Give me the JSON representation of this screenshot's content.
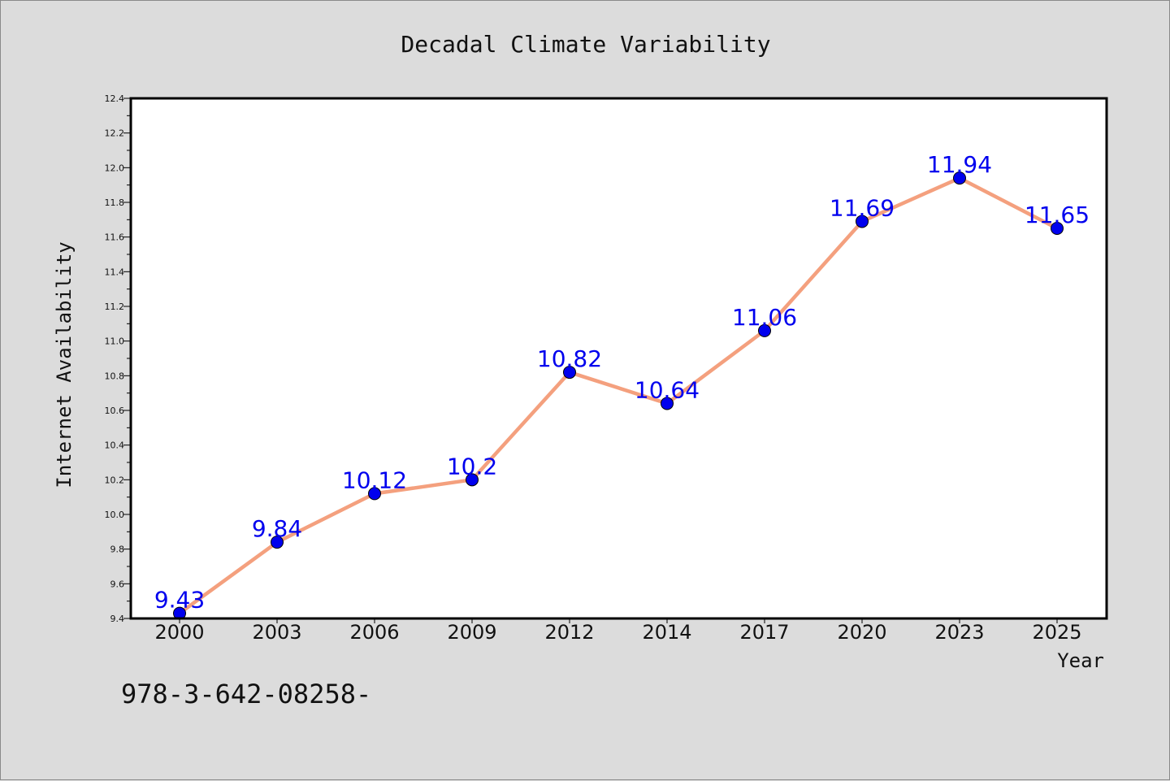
{
  "chart_data": {
    "type": "line",
    "title": "Decadal Climate Variability",
    "xlabel": "Year",
    "ylabel": "Internet Availability",
    "categories": [
      "2000",
      "2003",
      "2006",
      "2009",
      "2012",
      "2014",
      "2017",
      "2020",
      "2023",
      "2025"
    ],
    "series": [
      {
        "values": [
          9.43,
          9.84,
          10.12,
          10.2,
          10.82,
          10.64,
          11.06,
          11.69,
          11.94,
          11.65
        ],
        "labels": [
          "9.43",
          "9.84",
          "10.12",
          "10.2",
          "10.82",
          "10.64",
          "11.06",
          "11.69",
          "11.94",
          "11.65"
        ],
        "line_color": "#f4a07e",
        "marker_color": "#0000ee",
        "label_color": "#0000ee"
      }
    ],
    "ylim": [
      9.4,
      12.4
    ],
    "yticks": [
      "9.4",
      "9.6",
      "9.8",
      "10.0",
      "10.2",
      "10.4",
      "10.6",
      "10.8",
      "11.0",
      "11.2",
      "11.4",
      "11.6",
      "11.8",
      "12.0",
      "12.2",
      "12.4"
    ],
    "grid": false,
    "legend": "none"
  },
  "footer": {
    "isbn": "978-3-642-08258-"
  },
  "colors": {
    "background": "#dcdcdc",
    "plot_area": "#ffffff",
    "axis": "#000000"
  }
}
